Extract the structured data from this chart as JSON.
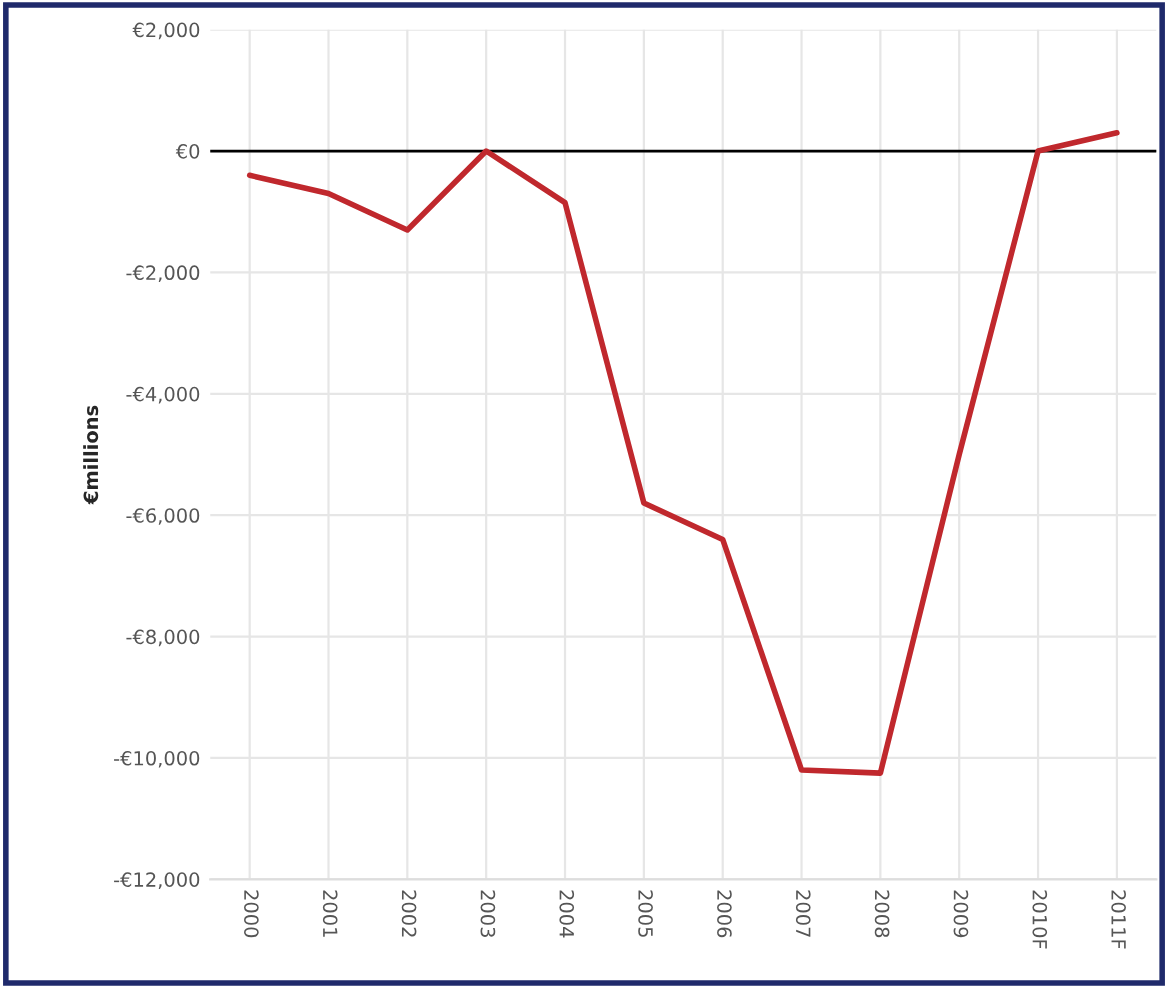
{
  "chart_data": {
    "type": "line",
    "ylabel": "€millions",
    "categories": [
      "2000",
      "2001",
      "2002",
      "2003",
      "2004",
      "2005",
      "2006",
      "2007",
      "2008",
      "2009",
      "2010F",
      "2011F"
    ],
    "series": [
      {
        "color": "#c0282d",
        "values": [
          -400,
          -700,
          -1300,
          0,
          -850,
          -5800,
          -6400,
          -10200,
          -10250,
          -5000,
          0,
          300
        ]
      }
    ],
    "ylim": [
      -12000,
      2000
    ],
    "yticks": [
      {
        "value": 2000,
        "label": "€2,000"
      },
      {
        "value": 0,
        "label": "€0"
      },
      {
        "value": -2000,
        "label": "-€2,000"
      },
      {
        "value": -4000,
        "label": "-€4,000"
      },
      {
        "value": -6000,
        "label": "-€6,000"
      },
      {
        "value": -8000,
        "label": "-€8,000"
      },
      {
        "value": -10000,
        "label": "-€10,000"
      },
      {
        "value": -12000,
        "label": "-€12,000"
      }
    ],
    "ref_lines": [
      {
        "axis": "y",
        "value": 0,
        "color": "#000000"
      }
    ],
    "grid": true,
    "marker": "none",
    "line_style": "solid"
  }
}
